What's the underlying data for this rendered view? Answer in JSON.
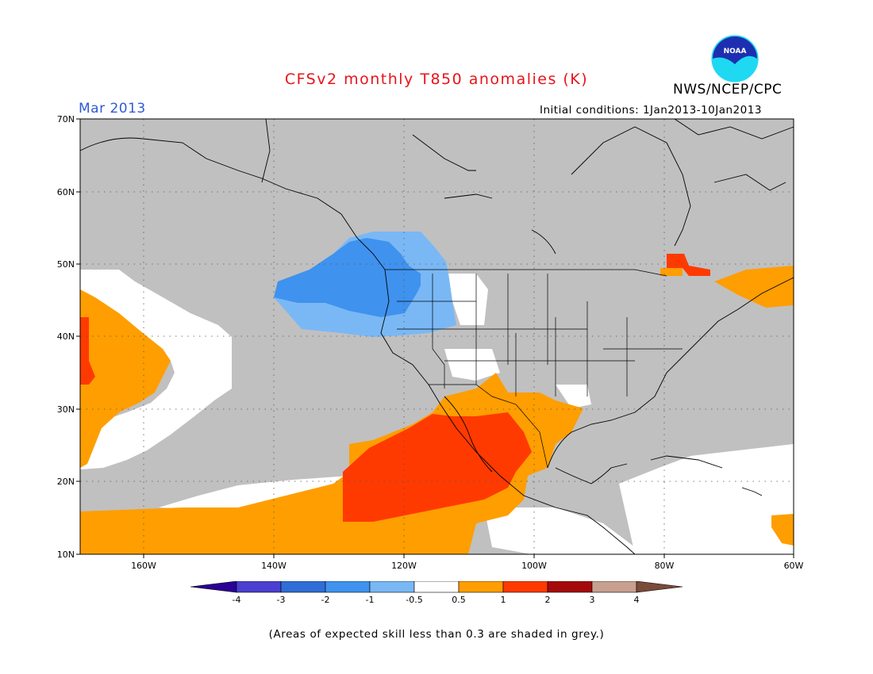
{
  "header": {
    "title": "CFSv2 monthly T850 anomalies (K)",
    "organization": "NWS/NCEP/CPC",
    "forecast_month": "Mar 2013",
    "initial_conditions": "Initial conditions: 1Jan2013-10Jan2013",
    "logo_text": "NOAA"
  },
  "map": {
    "lat_labels": [
      "70N",
      "60N",
      "50N",
      "40N",
      "30N",
      "20N",
      "10N"
    ],
    "lon_labels": [
      "160W",
      "140W",
      "120W",
      "100W",
      "80W",
      "60W"
    ],
    "colors": {
      "land_outline": "#000000",
      "grey_low_skill": "#c0c0c0",
      "neutral": "#ffffff"
    }
  },
  "legend": {
    "bins": [
      {
        "color": "#2a0096"
      },
      {
        "color": "#4a3fd0"
      },
      {
        "color": "#2f6ed6"
      },
      {
        "color": "#3f92ee"
      },
      {
        "color": "#7ab8f5"
      },
      {
        "color": "#ffffff"
      },
      {
        "color": "#ff9e00"
      },
      {
        "color": "#ff3a00"
      },
      {
        "color": "#a50a0a"
      },
      {
        "color": "#c8a090"
      },
      {
        "color": "#7a4a3a"
      }
    ],
    "tick_labels": [
      "-4",
      "-3",
      "-2",
      "-1",
      "-0.5",
      "0.5",
      "1",
      "2",
      "3",
      "4"
    ]
  },
  "footnote": "(Areas of expected skill less than 0.3 are shaded in grey.)"
}
